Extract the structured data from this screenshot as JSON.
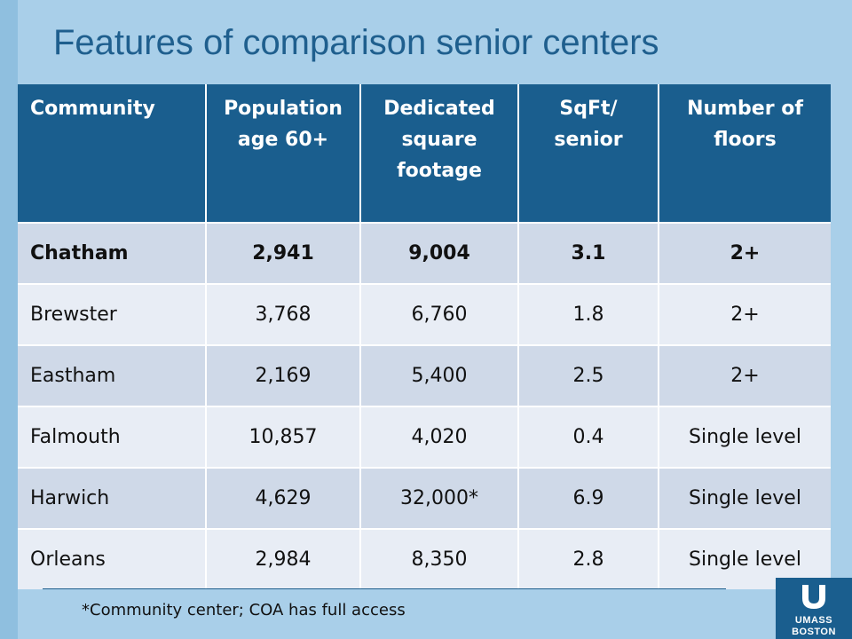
{
  "title": "Features of comparison senior centers",
  "table": {
    "headers": [
      "Community",
      "Population age 60+",
      "Dedicated square footage",
      "SqFt/ senior",
      "Number of floors"
    ],
    "rows": [
      [
        "Chatham",
        "2,941",
        "9,004",
        "3.1",
        "2+"
      ],
      [
        "Brewster",
        "3,768",
        "6,760",
        "1.8",
        "2+"
      ],
      [
        "Eastham",
        "2,169",
        "5,400",
        "2.5",
        "2+"
      ],
      [
        "Falmouth",
        "10,857",
        "4,020",
        "0.4",
        "Single level"
      ],
      [
        "Harwich",
        "4,629",
        "32,000*",
        "6.9",
        "Single level"
      ],
      [
        "Orleans",
        "2,984",
        "8,350",
        "2.8",
        "Single level"
      ]
    ]
  },
  "footnote": "*Community center; COA has full access",
  "logo": {
    "line1": "UMASS",
    "line2": "BOSTON"
  },
  "colors": {
    "header_bg": "#1a5e8e",
    "slide_bg": "#a9cfe9",
    "title": "#1f5f8e"
  }
}
